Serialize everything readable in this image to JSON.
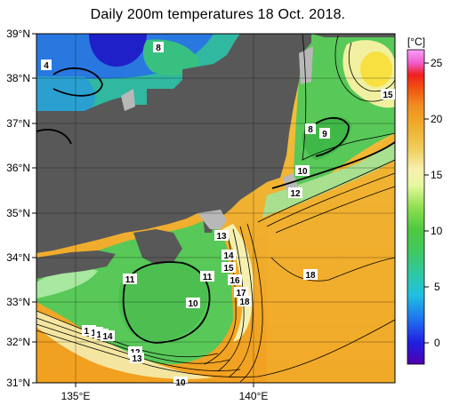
{
  "title": "Daily 200m temperatures 18 Oct. 2018.",
  "latitude_labels": [
    "39°N",
    "38°N",
    "37°N",
    "36°N",
    "35°N",
    "34°N",
    "33°N",
    "32°N",
    "31°N"
  ],
  "longitude_labels": [
    "135°E",
    "140°E"
  ],
  "colorbar": {
    "unit": "[°C]",
    "ticks": [
      "25",
      "20",
      "15",
      "10",
      "5",
      "0"
    ],
    "ticks_values": [
      25,
      20,
      15,
      10,
      5,
      0
    ],
    "range": [
      -2,
      26
    ]
  },
  "contour_labels": [
    {
      "text": "4"
    },
    {
      "text": "8"
    },
    {
      "text": "15"
    },
    {
      "text": "8"
    },
    {
      "text": "9"
    },
    {
      "text": "10"
    },
    {
      "text": "12"
    },
    {
      "text": "13"
    },
    {
      "text": "14"
    },
    {
      "text": "15"
    },
    {
      "text": "11"
    },
    {
      "text": "11"
    },
    {
      "text": "16"
    },
    {
      "text": "17"
    },
    {
      "text": "18"
    },
    {
      "text": "10"
    },
    {
      "text": "18"
    },
    {
      "text": "18"
    },
    {
      "text": "16"
    },
    {
      "text": "15"
    },
    {
      "text": "14"
    },
    {
      "text": "12"
    },
    {
      "text": "13"
    },
    {
      "text": "10"
    }
  ],
  "colors": {
    "land": "#585858",
    "coast_shadow": "#b4b4b4",
    "warm": "#f0a020",
    "cold": "#2040d0"
  }
}
